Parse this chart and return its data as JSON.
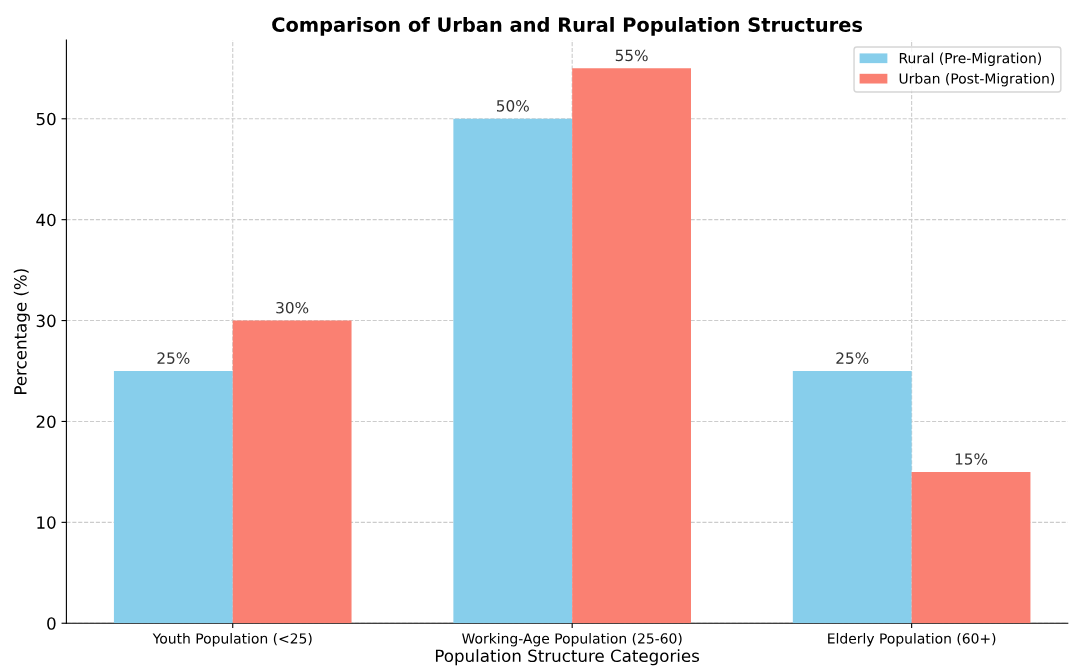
{
  "chart_data": {
    "type": "bar",
    "title": "Comparison of Urban and Rural Population Structures",
    "xlabel": "Population Structure Categories",
    "ylabel": "Percentage (%)",
    "categories": [
      "Youth Population (<25)",
      "Working-Age Population (25-60)",
      "Elderly Population (60+)"
    ],
    "series": [
      {
        "name": "Rural (Pre-Migration)",
        "color": "#87ceeb",
        "values": [
          25,
          50,
          25
        ],
        "value_labels": [
          "25%",
          "50%",
          "25%"
        ]
      },
      {
        "name": "Urban (Post-Migration)",
        "color": "#fa8072",
        "values": [
          30,
          55,
          15
        ],
        "value_labels": [
          "30%",
          "55%",
          "15%"
        ]
      }
    ],
    "ylim": [
      0,
      57.8
    ],
    "yticks": [
      0,
      10,
      20,
      30,
      40,
      50
    ],
    "grid": true,
    "legend": "top right"
  }
}
